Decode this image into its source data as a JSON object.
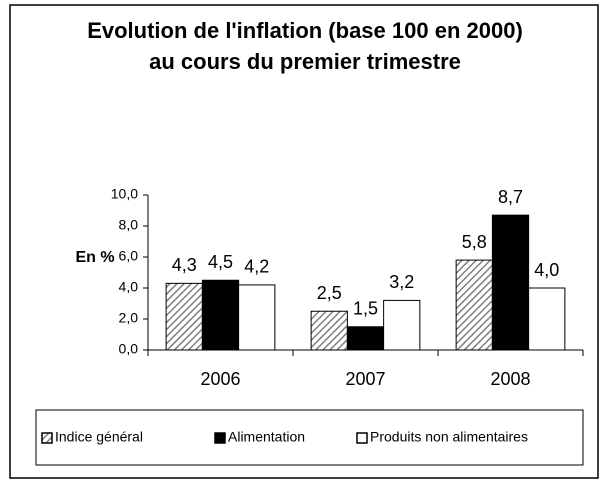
{
  "chart_data": {
    "type": "bar",
    "title": [
      "Evolution de l'inflation (base 100 en 2000)",
      "au cours du premier trimestre"
    ],
    "ylabel": "En %",
    "categories": [
      "2006",
      "2007",
      "2008"
    ],
    "series": [
      {
        "name": "Indice général",
        "color": "#808080",
        "pattern": "hatch",
        "values": [
          4.3,
          2.5,
          5.8
        ],
        "value_labels": [
          "4,3",
          "2,5",
          "5,8"
        ]
      },
      {
        "name": "Alimentation",
        "color": "#000000",
        "values": [
          4.5,
          1.5,
          8.7
        ],
        "value_labels": [
          "4,5",
          "1,5",
          "8,7"
        ]
      },
      {
        "name": "Produits non alimentaires",
        "color": "#ffffff",
        "values": [
          4.2,
          3.2,
          4.0
        ],
        "value_labels": [
          "4,2",
          "3,2",
          "4,0"
        ]
      }
    ],
    "ylim": [
      0,
      10
    ],
    "yticks": [
      {
        "value": 0,
        "label": "0,0"
      },
      {
        "value": 2,
        "label": "2,0"
      },
      {
        "value": 4,
        "label": "4,0"
      },
      {
        "value": 6,
        "label": "6,0"
      },
      {
        "value": 8,
        "label": "8,0"
      },
      {
        "value": 10,
        "label": "10,0"
      }
    ],
    "legend": "bottom"
  }
}
